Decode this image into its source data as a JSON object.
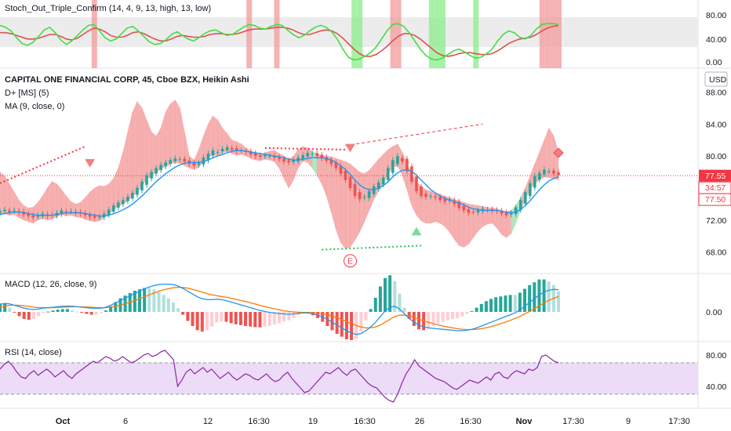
{
  "chart_data": {
    "type": "candlestick",
    "colors": {
      "up": "#26a69a",
      "down": "#ef5350",
      "ma": "#2196f3",
      "cloud_up": "#f5a3a3",
      "cloud_down": "#a8e0b8",
      "macd": "#2196f3",
      "signal": "#ff7a00",
      "rsi": "#8e24aa",
      "stoch_k": "#44dd44",
      "stoch_d": "#e05050",
      "stoch_band": "#ececec",
      "rsi_band": "#ecdcf7",
      "price_tag": "#f23645",
      "panel_sep": "#e0e3eb"
    },
    "stoch_panel": {
      "title": "Stoch_Out_Triple_Confirm (14, 4, 9, 13, high, 13, low)",
      "ticks": [
        "80.00",
        "40.00",
        "0.00"
      ],
      "k": [
        82,
        78,
        70,
        55,
        42,
        38,
        45,
        58,
        72,
        78,
        66,
        50,
        40,
        48,
        60,
        72,
        82,
        84,
        70,
        55,
        48,
        52,
        64,
        76,
        80,
        70,
        58,
        46,
        40,
        42,
        50,
        62,
        68,
        60,
        52,
        48,
        55,
        64,
        70,
        72,
        66,
        60,
        62,
        70,
        78,
        84,
        82,
        76,
        74,
        80,
        84,
        82,
        72,
        62,
        55,
        60,
        70,
        78,
        82,
        78,
        68,
        52,
        30,
        12,
        6,
        8,
        14,
        22,
        34,
        52,
        70,
        84,
        86,
        80,
        66,
        48,
        30,
        16,
        8,
        6,
        10,
        18,
        26,
        30,
        24,
        16,
        10,
        12,
        20,
        30,
        48,
        62,
        70,
        66,
        56,
        52,
        60,
        74,
        84,
        86,
        86,
        84
      ],
      "d": [
        66,
        66,
        64,
        60,
        56,
        52,
        52,
        54,
        58,
        62,
        62,
        58,
        52,
        50,
        54,
        62,
        70,
        76,
        74,
        68,
        60,
        56,
        56,
        60,
        66,
        68,
        64,
        58,
        52,
        48,
        48,
        52,
        58,
        60,
        58,
        56,
        56,
        58,
        62,
        64,
        64,
        62,
        62,
        64,
        68,
        72,
        74,
        74,
        74,
        76,
        78,
        78,
        76,
        72,
        66,
        62,
        62,
        66,
        70,
        72,
        70,
        64,
        54,
        42,
        30,
        20,
        14,
        14,
        18,
        26,
        36,
        48,
        58,
        64,
        64,
        60,
        52,
        42,
        32,
        22,
        16,
        14,
        16,
        20,
        22,
        22,
        20,
        18,
        18,
        20,
        26,
        34,
        42,
        48,
        52,
        54,
        56,
        62,
        70,
        76,
        80,
        82
      ]
    },
    "price_panel": {
      "title": "CAPITAL ONE FINANCIAL CORP, 45, Cboe BZX, Heikin Ashi",
      "legend": [
        "D+ [MS] (5)",
        "MA (9, close, 0)"
      ],
      "currency": "USD",
      "ticks": [
        "88.00",
        "84.00",
        "80.00",
        "76.00",
        "72.00",
        "68.00"
      ],
      "ylim": [
        66.2,
        90.2
      ],
      "last_price": "77.55",
      "countdown": "34:57",
      "level_label": "77.50",
      "marker_label": "E",
      "close": [
        73.1,
        73.3,
        73.0,
        73.2,
        72.9,
        72.7,
        72.5,
        72.3,
        72.6,
        72.8,
        72.5,
        72.6,
        72.9,
        73.2,
        73.0,
        73.1,
        72.9,
        72.8,
        72.6,
        72.4,
        72.3,
        72.4,
        72.8,
        73.3,
        73.8,
        74.2,
        74.5,
        74.9,
        75.4,
        76.0,
        76.8,
        77.6,
        78.0,
        78.5,
        78.9,
        79.2,
        79.5,
        79.7,
        79.6,
        79.3,
        79.0,
        78.8,
        79.1,
        79.8,
        80.3,
        80.7,
        80.5,
        80.9,
        81.1,
        80.8,
        80.6,
        80.7,
        80.5,
        80.2,
        80.0,
        79.9,
        80.1,
        80.0,
        79.8,
        79.6,
        79.3,
        79.2,
        79.5,
        79.8,
        80.1,
        80.4,
        80.3,
        80.0,
        79.7,
        79.4,
        79.0,
        78.5,
        77.8,
        77.0,
        76.0,
        75.0,
        74.6,
        74.9,
        75.6,
        76.2,
        76.7,
        77.3,
        78.5,
        79.5,
        80.0,
        79.3,
        78.1,
        76.8,
        75.6,
        75.0,
        74.9,
        75.0,
        74.8,
        74.5,
        74.3,
        74.6,
        74.0,
        73.5,
        73.2,
        72.9,
        73.0,
        73.2,
        73.4,
        73.3,
        73.2,
        73.1,
        72.8,
        72.6,
        72.9,
        73.6,
        74.5,
        75.5,
        76.6,
        77.5,
        77.9,
        78.3,
        78.1,
        77.8,
        77.6
      ],
      "ma": [
        72.7,
        72.8,
        72.9,
        73.0,
        73.0,
        72.9,
        72.8,
        72.7,
        72.6,
        72.6,
        72.6,
        72.6,
        72.7,
        72.8,
        72.9,
        72.9,
        72.9,
        72.9,
        72.8,
        72.7,
        72.6,
        72.5,
        72.5,
        72.6,
        72.8,
        73.0,
        73.3,
        73.6,
        74.0,
        74.5,
        75.0,
        75.6,
        76.2,
        76.8,
        77.3,
        77.8,
        78.2,
        78.6,
        78.9,
        79.1,
        79.2,
        79.2,
        79.2,
        79.3,
        79.5,
        79.8,
        80.0,
        80.2,
        80.4,
        80.6,
        80.7,
        80.7,
        80.6,
        80.5,
        80.4,
        80.3,
        80.2,
        80.1,
        80.0,
        79.9,
        79.8,
        79.6,
        79.5,
        79.5,
        79.6,
        79.7,
        79.8,
        79.8,
        79.8,
        79.7,
        79.5,
        79.2,
        78.8,
        78.3,
        77.7,
        77.0,
        76.4,
        76.0,
        75.8,
        75.8,
        76.0,
        76.3,
        76.8,
        77.4,
        77.9,
        78.2,
        78.3,
        78.1,
        77.6,
        77.0,
        76.4,
        75.8,
        75.4,
        75.0,
        74.7,
        74.5,
        74.3,
        74.1,
        73.9,
        73.6,
        73.4,
        73.3,
        73.2,
        73.2,
        73.2,
        73.2,
        73.1,
        73.0,
        72.9,
        73.0,
        73.3,
        73.8,
        74.4,
        75.1,
        75.8,
        76.4,
        76.9,
        77.2,
        77.4
      ],
      "cloud_upper": [
        78.0,
        77.5,
        76.5,
        75.5,
        74.5,
        73.8,
        73.5,
        73.6,
        74.2,
        75.0,
        76.0,
        76.8,
        76.5,
        75.8,
        75.0,
        74.3,
        74.0,
        74.2,
        74.8,
        75.5,
        76.0,
        76.3,
        76.2,
        76.5,
        77.2,
        78.5,
        80.5,
        83.0,
        85.5,
        86.8,
        86.0,
        84.5,
        83.0,
        82.5,
        83.5,
        85.5,
        86.5,
        87.0,
        86.0,
        83.0,
        80.0,
        79.5,
        80.8,
        82.5,
        84.0,
        85.0,
        84.5,
        83.5,
        82.8,
        82.0,
        81.8,
        81.5,
        81.0,
        80.6,
        80.3,
        80.2,
        80.4,
        80.6,
        80.7,
        80.3,
        80.0,
        79.6,
        80.0,
        80.8,
        81.2,
        81.0,
        80.6,
        80.3,
        80.1,
        80.0,
        79.9,
        79.7,
        79.5,
        79.3,
        79.0,
        78.5,
        78.0,
        77.8,
        78.2,
        78.9,
        79.6,
        80.2,
        80.8,
        81.2,
        81.5,
        80.5,
        79.0,
        77.8,
        76.8,
        76.2,
        75.8,
        75.6,
        75.4,
        75.2,
        75.0,
        74.8,
        74.6,
        74.4,
        74.2,
        74.0,
        73.9,
        73.8,
        73.7,
        73.6,
        73.5,
        73.4,
        73.2,
        73.0,
        73.2,
        73.8,
        74.8,
        76.0,
        77.5,
        79.0,
        80.5,
        82.0,
        83.5,
        82.5,
        80.5
      ],
      "cloud_lower": [
        72.6,
        72.8,
        72.6,
        72.7,
        72.3,
        72.0,
        71.8,
        71.6,
        72.0,
        72.2,
        72.0,
        72.1,
        72.4,
        72.7,
        72.5,
        72.6,
        72.4,
        72.3,
        72.1,
        71.9,
        71.8,
        71.9,
        72.3,
        72.8,
        73.3,
        73.7,
        74.0,
        74.4,
        74.9,
        75.5,
        76.3,
        77.1,
        77.5,
        78.0,
        78.4,
        78.7,
        79.0,
        79.2,
        79.1,
        78.8,
        78.5,
        78.3,
        78.6,
        79.3,
        79.8,
        80.2,
        80.0,
        80.4,
        80.6,
        80.3,
        80.1,
        80.2,
        80.0,
        79.7,
        79.5,
        79.4,
        79.6,
        79.5,
        79.3,
        78.5,
        77.2,
        76.0,
        77.0,
        78.5,
        79.4,
        79.2,
        78.5,
        77.6,
        76.5,
        75.0,
        73.0,
        70.8,
        69.2,
        68.4,
        68.6,
        69.5,
        70.5,
        71.8,
        73.2,
        74.6,
        75.6,
        76.5,
        77.8,
        78.6,
        78.8,
        77.6,
        75.8,
        73.8,
        72.6,
        71.9,
        71.6,
        71.6,
        71.8,
        71.6,
        71.2,
        70.5,
        69.6,
        68.8,
        68.6,
        69.0,
        69.8,
        70.6,
        71.2,
        71.5,
        71.6,
        71.0,
        70.2,
        69.8,
        70.3,
        71.6,
        73.2,
        74.6,
        75.8,
        76.6,
        77.0,
        77.4,
        77.3,
        77.2,
        77.0
      ]
    },
    "macd_panel": {
      "title": "MACD (12, 26, close, 9)",
      "ticks": [
        "0.00"
      ],
      "macd": [
        0.8,
        0.9,
        0.85,
        0.7,
        0.55,
        0.4,
        0.3,
        0.25,
        0.3,
        0.4,
        0.45,
        0.5,
        0.55,
        0.6,
        0.62,
        0.6,
        0.55,
        0.5,
        0.45,
        0.4,
        0.38,
        0.4,
        0.5,
        0.7,
        0.95,
        1.2,
        1.45,
        1.7,
        1.95,
        2.2,
        2.45,
        2.65,
        2.8,
        2.9,
        2.95,
        2.95,
        2.9,
        2.75,
        2.5,
        2.2,
        1.9,
        1.6,
        1.4,
        1.3,
        1.3,
        1.35,
        1.3,
        1.2,
        1.05,
        0.9,
        0.75,
        0.6,
        0.45,
        0.3,
        0.15,
        0.05,
        -0.05,
        -0.12,
        -0.18,
        -0.22,
        -0.25,
        -0.22,
        -0.15,
        -0.1,
        -0.12,
        -0.2,
        -0.35,
        -0.55,
        -0.8,
        -1.1,
        -1.4,
        -1.7,
        -2.0,
        -2.25,
        -2.4,
        -2.3,
        -2.0,
        -1.6,
        -1.1,
        -0.5,
        0.1,
        0.5,
        0.6,
        0.3,
        -0.2,
        -0.7,
        -1.1,
        -1.4,
        -1.6,
        -1.7,
        -1.75,
        -1.8,
        -1.85,
        -1.9,
        -1.95,
        -2.0,
        -2.0,
        -1.95,
        -1.85,
        -1.7,
        -1.5,
        -1.3,
        -1.1,
        -0.9,
        -0.7,
        -0.5,
        -0.3,
        -0.1,
        0.2,
        0.6,
        1.0,
        1.4,
        1.8,
        2.1,
        2.3,
        2.4,
        2.35
      ],
      "signal": [
        0.5,
        0.6,
        0.7,
        0.72,
        0.7,
        0.65,
        0.58,
        0.5,
        0.45,
        0.44,
        0.44,
        0.45,
        0.47,
        0.5,
        0.52,
        0.54,
        0.54,
        0.53,
        0.52,
        0.5,
        0.47,
        0.45,
        0.45,
        0.5,
        0.6,
        0.72,
        0.87,
        1.03,
        1.2,
        1.4,
        1.6,
        1.8,
        2.0,
        2.2,
        2.35,
        2.47,
        2.57,
        2.62,
        2.6,
        2.52,
        2.4,
        2.25,
        2.1,
        1.95,
        1.82,
        1.72,
        1.64,
        1.55,
        1.45,
        1.34,
        1.22,
        1.1,
        0.97,
        0.84,
        0.7,
        0.57,
        0.45,
        0.33,
        0.22,
        0.12,
        0.05,
        0.0,
        -0.03,
        -0.05,
        -0.06,
        -0.08,
        -0.13,
        -0.2,
        -0.3,
        -0.45,
        -0.62,
        -0.82,
        -1.03,
        -1.25,
        -1.45,
        -1.6,
        -1.7,
        -1.7,
        -1.6,
        -1.4,
        -1.1,
        -0.8,
        -0.5,
        -0.35,
        -0.35,
        -0.45,
        -0.6,
        -0.78,
        -0.95,
        -1.1,
        -1.25,
        -1.38,
        -1.5,
        -1.6,
        -1.7,
        -1.78,
        -1.84,
        -1.88,
        -1.88,
        -1.85,
        -1.78,
        -1.68,
        -1.56,
        -1.42,
        -1.25,
        -1.08,
        -0.9,
        -0.7,
        -0.48,
        -0.22,
        0.05,
        0.35,
        0.65,
        0.95,
        1.22,
        1.45,
        1.63
      ]
    },
    "rsi_panel": {
      "title": "RSI (14, close)",
      "ticks": [
        "80.00",
        "40.00"
      ],
      "band": [
        30,
        70
      ],
      "values": [
        62,
        68,
        72,
        66,
        58,
        52,
        50,
        56,
        60,
        54,
        58,
        62,
        58,
        52,
        56,
        60,
        54,
        50,
        56,
        60,
        64,
        68,
        72,
        70,
        74,
        78,
        76,
        72,
        74,
        78,
        74,
        70,
        72,
        76,
        80,
        82,
        78,
        80,
        84,
        86,
        80,
        74,
        40,
        48,
        58,
        62,
        56,
        60,
        64,
        58,
        62,
        56,
        50,
        54,
        58,
        52,
        48,
        52,
        56,
        54,
        50,
        48,
        52,
        56,
        50,
        46,
        48,
        54,
        58,
        50,
        44,
        38,
        32,
        34,
        40,
        46,
        52,
        58,
        56,
        60,
        64,
        58,
        54,
        60,
        62,
        56,
        50,
        44,
        40,
        38,
        32,
        26,
        22,
        20,
        30,
        44,
        56,
        64,
        74,
        66,
        62,
        58,
        54,
        50,
        48,
        46,
        42,
        38,
        36,
        40,
        44,
        48,
        46,
        44,
        48,
        52,
        48,
        56,
        58,
        52,
        50,
        56,
        60,
        58,
        56,
        62,
        60,
        64,
        78,
        80,
        76,
        72,
        70
      ]
    },
    "x_axis": {
      "ticks": [
        {
          "label": "Oct",
          "bold": true
        },
        {
          "label": "6",
          "bold": false
        },
        {
          "label": "12",
          "bold": false
        },
        {
          "label": "16:30",
          "bold": false
        },
        {
          "label": "19",
          "bold": false
        },
        {
          "label": "16:30",
          "bold": false
        },
        {
          "label": "26",
          "bold": false
        },
        {
          "label": "16:30",
          "bold": false
        },
        {
          "label": "Nov",
          "bold": true
        },
        {
          "label": "17:30",
          "bold": false
        },
        {
          "label": "9",
          "bold": false
        },
        {
          "label": "17:30",
          "bold": false
        }
      ]
    }
  }
}
